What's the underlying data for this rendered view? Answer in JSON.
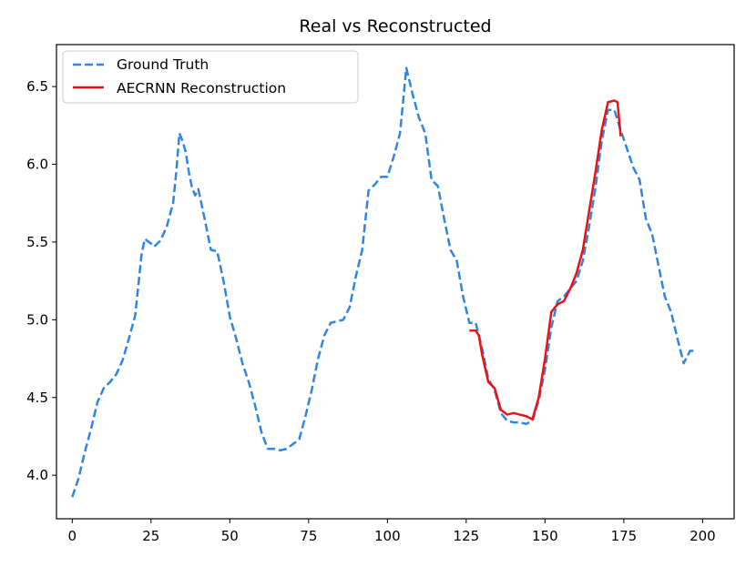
{
  "chart_data": {
    "type": "line",
    "title": "Real vs Reconstructed",
    "xlabel": "",
    "ylabel": "",
    "xlim": [
      -5,
      210
    ],
    "ylim": [
      3.72,
      6.77
    ],
    "x_ticks": [
      0,
      25,
      50,
      75,
      100,
      125,
      150,
      175,
      200
    ],
    "y_ticks": [
      4.0,
      4.5,
      5.0,
      5.5,
      6.0,
      6.5
    ],
    "x_tick_labels": [
      "0",
      "25",
      "50",
      "75",
      "100",
      "125",
      "150",
      "175",
      "200"
    ],
    "y_tick_labels": [
      "4.0",
      "4.5",
      "5.0",
      "5.5",
      "6.0",
      "6.5"
    ],
    "grid": false,
    "legend_position": "top-left",
    "series": [
      {
        "name": "Ground Truth",
        "color": "#2f86e0",
        "style": "dashed",
        "points": [
          [
            0,
            3.86
          ],
          [
            2,
            3.98
          ],
          [
            4,
            4.15
          ],
          [
            6,
            4.3
          ],
          [
            8,
            4.47
          ],
          [
            10,
            4.56
          ],
          [
            12,
            4.6
          ],
          [
            14,
            4.65
          ],
          [
            16,
            4.74
          ],
          [
            18,
            4.88
          ],
          [
            20,
            5.03
          ],
          [
            22,
            5.42
          ],
          [
            23,
            5.52
          ],
          [
            25,
            5.49
          ],
          [
            26,
            5.47
          ],
          [
            28,
            5.51
          ],
          [
            30,
            5.6
          ],
          [
            32,
            5.75
          ],
          [
            33,
            5.95
          ],
          [
            34,
            6.2
          ],
          [
            35,
            6.15
          ],
          [
            36,
            6.08
          ],
          [
            37,
            5.95
          ],
          [
            38,
            5.85
          ],
          [
            39,
            5.8
          ],
          [
            40,
            5.84
          ],
          [
            42,
            5.65
          ],
          [
            44,
            5.45
          ],
          [
            46,
            5.44
          ],
          [
            48,
            5.25
          ],
          [
            50,
            5.02
          ],
          [
            52,
            4.88
          ],
          [
            54,
            4.72
          ],
          [
            56,
            4.6
          ],
          [
            58,
            4.45
          ],
          [
            60,
            4.28
          ],
          [
            62,
            4.17
          ],
          [
            64,
            4.17
          ],
          [
            66,
            4.16
          ],
          [
            68,
            4.17
          ],
          [
            70,
            4.2
          ],
          [
            72,
            4.23
          ],
          [
            74,
            4.38
          ],
          [
            76,
            4.55
          ],
          [
            78,
            4.75
          ],
          [
            80,
            4.9
          ],
          [
            82,
            4.98
          ],
          [
            84,
            4.99
          ],
          [
            86,
            5.0
          ],
          [
            88,
            5.08
          ],
          [
            90,
            5.28
          ],
          [
            92,
            5.45
          ],
          [
            94,
            5.83
          ],
          [
            96,
            5.87
          ],
          [
            98,
            5.92
          ],
          [
            100,
            5.92
          ],
          [
            102,
            6.05
          ],
          [
            104,
            6.2
          ],
          [
            106,
            6.62
          ],
          [
            108,
            6.45
          ],
          [
            110,
            6.3
          ],
          [
            112,
            6.2
          ],
          [
            114,
            5.9
          ],
          [
            116,
            5.86
          ],
          [
            118,
            5.65
          ],
          [
            120,
            5.45
          ],
          [
            122,
            5.38
          ],
          [
            124,
            5.15
          ],
          [
            126,
            4.98
          ],
          [
            128,
            4.98
          ],
          [
            130,
            4.82
          ],
          [
            132,
            4.62
          ],
          [
            134,
            4.55
          ],
          [
            136,
            4.4
          ],
          [
            138,
            4.35
          ],
          [
            140,
            4.34
          ],
          [
            142,
            4.34
          ],
          [
            144,
            4.33
          ],
          [
            146,
            4.35
          ],
          [
            148,
            4.48
          ],
          [
            150,
            4.68
          ],
          [
            152,
            4.95
          ],
          [
            154,
            5.12
          ],
          [
            156,
            5.15
          ],
          [
            158,
            5.2
          ],
          [
            160,
            5.25
          ],
          [
            162,
            5.38
          ],
          [
            164,
            5.6
          ],
          [
            166,
            5.85
          ],
          [
            168,
            6.15
          ],
          [
            170,
            6.35
          ],
          [
            172,
            6.35
          ],
          [
            174,
            6.22
          ],
          [
            176,
            6.1
          ],
          [
            178,
            5.98
          ],
          [
            180,
            5.9
          ],
          [
            182,
            5.65
          ],
          [
            184,
            5.55
          ],
          [
            186,
            5.35
          ],
          [
            188,
            5.15
          ],
          [
            190,
            5.05
          ],
          [
            192,
            4.88
          ],
          [
            194,
            4.72
          ],
          [
            196,
            4.8
          ],
          [
            198,
            4.8
          ]
        ]
      },
      {
        "name": "AECRNN Reconstruction",
        "color": "#ee1111",
        "style": "solid",
        "points": [
          [
            126,
            4.93
          ],
          [
            128,
            4.93
          ],
          [
            129,
            4.9
          ],
          [
            130,
            4.78
          ],
          [
            132,
            4.6
          ],
          [
            134,
            4.56
          ],
          [
            136,
            4.42
          ],
          [
            138,
            4.39
          ],
          [
            140,
            4.4
          ],
          [
            142,
            4.39
          ],
          [
            144,
            4.38
          ],
          [
            146,
            4.36
          ],
          [
            148,
            4.5
          ],
          [
            150,
            4.75
          ],
          [
            152,
            5.05
          ],
          [
            154,
            5.1
          ],
          [
            156,
            5.12
          ],
          [
            158,
            5.2
          ],
          [
            160,
            5.3
          ],
          [
            162,
            5.45
          ],
          [
            164,
            5.7
          ],
          [
            166,
            5.95
          ],
          [
            168,
            6.22
          ],
          [
            170,
            6.4
          ],
          [
            172,
            6.41
          ],
          [
            173,
            6.4
          ],
          [
            174,
            6.18
          ]
        ]
      }
    ]
  }
}
